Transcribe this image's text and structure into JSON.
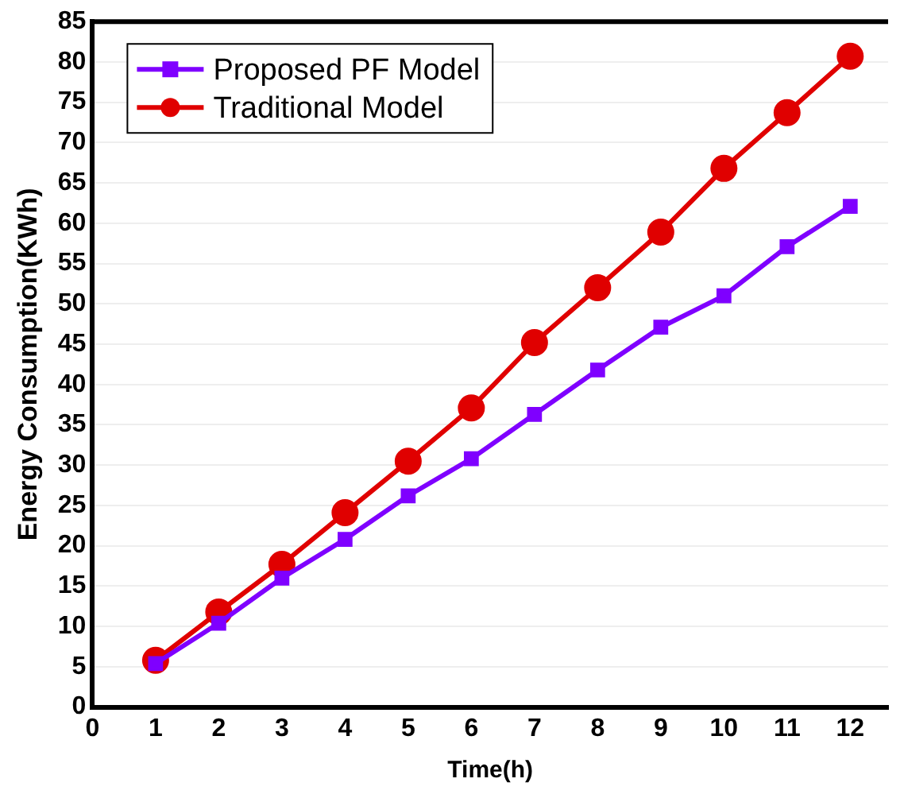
{
  "chart_data": {
    "type": "line",
    "xlabel": "Time(h)",
    "ylabel": "Energy Consumption(KWh)",
    "x": [
      1,
      2,
      3,
      4,
      5,
      6,
      7,
      8,
      9,
      10,
      11,
      12
    ],
    "series": [
      {
        "name": "Proposed PF Model",
        "color": "#7f00ff",
        "marker": "square",
        "values": [
          5.4,
          10.4,
          16.0,
          20.8,
          26.2,
          30.8,
          36.3,
          41.8,
          47.1,
          51.0,
          57.1,
          62.1
        ]
      },
      {
        "name": "Traditional Model",
        "color": "#e00000",
        "marker": "circle",
        "values": [
          5.8,
          11.8,
          17.7,
          24.1,
          30.5,
          37.1,
          45.2,
          52.0,
          58.9,
          66.8,
          73.7,
          80.7
        ]
      }
    ],
    "xlim": [
      0,
      12.6
    ],
    "xticks": [
      0,
      1,
      2,
      3,
      4,
      5,
      6,
      7,
      8,
      9,
      10,
      11,
      12
    ],
    "ylim": [
      0,
      85
    ],
    "yticks": [
      0,
      5,
      10,
      15,
      20,
      25,
      30,
      35,
      40,
      45,
      50,
      55,
      60,
      65,
      70,
      75,
      80,
      85
    ],
    "grid": "y",
    "legend": "top left",
    "line_style": "solid"
  }
}
